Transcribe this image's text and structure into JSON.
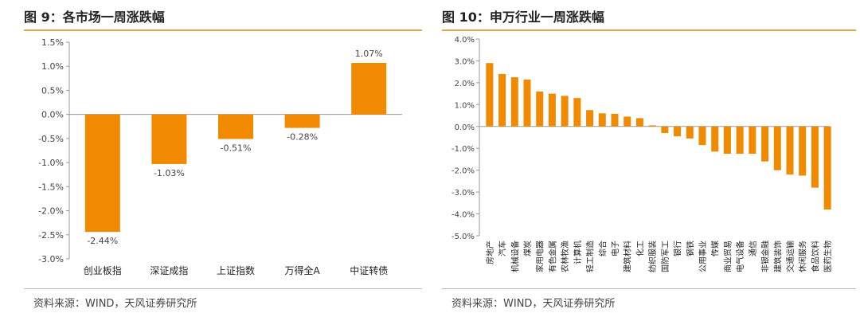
{
  "charts": [
    {
      "title": "图 9：各市场一周涨跌幅",
      "source": "资料来源：WIND，天风证券研究所"
    },
    {
      "title": "图 10：申万行业一周涨跌幅",
      "source": "资料来源：WIND，天风证券研究所"
    }
  ],
  "colors": {
    "bar": "#f28a00",
    "accent": "#e8a24a",
    "axis": "#999999",
    "text": "#444444"
  },
  "chart_data": [
    {
      "type": "bar",
      "categories": [
        "创业板指",
        "深证成指",
        "上证指数",
        "万得全A",
        "中证转债"
      ],
      "values": [
        -2.44,
        -1.03,
        -0.51,
        -0.28,
        1.07
      ],
      "data_labels": [
        "-2.44%",
        "-1.03%",
        "-0.51%",
        "-0.28%",
        "1.07%"
      ],
      "ylim": [
        -3.0,
        1.5
      ],
      "yticks": [
        1.5,
        1.0,
        0.5,
        0.0,
        -0.5,
        -1.0,
        -1.5,
        -2.0,
        -2.5,
        -3.0
      ],
      "ytick_labels": [
        "1.5%",
        "1.0%",
        "0.5%",
        "0.0%",
        "-0.5%",
        "-1.0%",
        "-1.5%",
        "-2.0%",
        "-2.5%",
        "-3.0%"
      ],
      "grid": false
    },
    {
      "type": "bar",
      "categories": [
        "房地产",
        "汽车",
        "机械设备",
        "煤炭",
        "家用电器",
        "有色金属",
        "农林牧渔",
        "计算机",
        "轻工制造",
        "综合",
        "电子",
        "建筑材料",
        "化工",
        "纺织服装",
        "国防军工",
        "银行",
        "钢铁",
        "公用事业",
        "传媒",
        "商业贸易",
        "电气设备",
        "通信",
        "非银金融",
        "建筑装饰",
        "交通运输",
        "休闲服务",
        "食品饮料",
        "医药生物"
      ],
      "values": [
        2.9,
        2.4,
        2.25,
        2.15,
        1.6,
        1.5,
        1.4,
        1.3,
        0.75,
        0.6,
        0.58,
        0.45,
        0.38,
        0.05,
        -0.3,
        -0.45,
        -0.55,
        -0.85,
        -1.15,
        -1.25,
        -1.25,
        -1.25,
        -1.6,
        -2.0,
        -2.2,
        -2.25,
        -2.8,
        -3.8
      ],
      "ylim": [
        -5.0,
        4.0
      ],
      "yticks": [
        4.0,
        3.0,
        2.0,
        1.0,
        0.0,
        -1.0,
        -2.0,
        -3.0,
        -4.0,
        -5.0
      ],
      "ytick_labels": [
        "4.0%",
        "3.0%",
        "2.0%",
        "1.0%",
        "0.0%",
        "-1.0%",
        "-2.0%",
        "-3.0%",
        "-4.0%",
        "-5.0%"
      ],
      "grid": false
    }
  ]
}
